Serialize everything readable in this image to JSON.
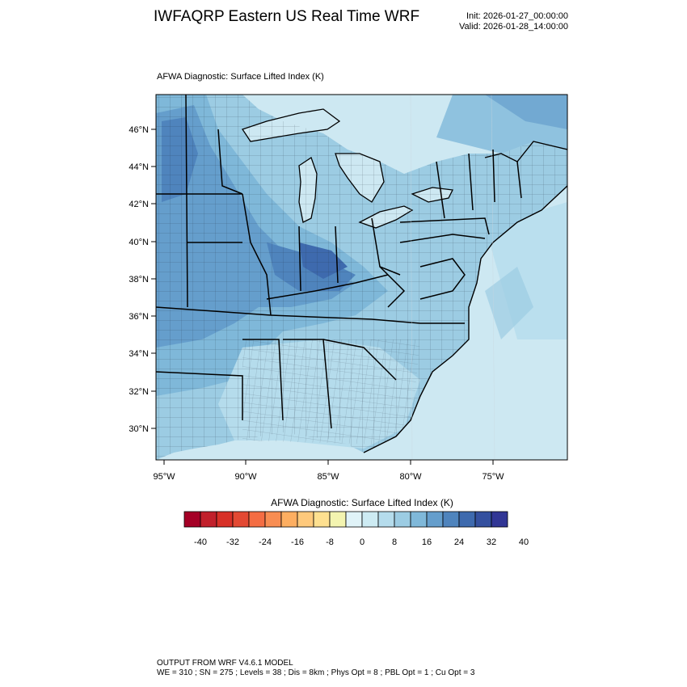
{
  "header": {
    "title": "IWFAQRP Eastern US Real Time WRF",
    "init": "Init: 2026-01-27_00:00:00",
    "valid": "Valid: 2026-01-28_14:00:00"
  },
  "plot": {
    "subtitle": "AFWA Diagnostic: Surface Lifted Index   (K)",
    "lat_labels": [
      "46°N",
      "44°N",
      "42°N",
      "40°N",
      "38°N",
      "36°N",
      "34°N",
      "32°N",
      "30°N"
    ],
    "lon_labels": [
      "95°W",
      "90°W",
      "85°W",
      "80°W",
      "75°W"
    ]
  },
  "colorbar": {
    "title": "AFWA Diagnostic: Surface Lifted Index  (K)",
    "ticks": [
      "-40",
      "-32",
      "-24",
      "-16",
      "-8",
      "0",
      "8",
      "16",
      "24",
      "32",
      "40"
    ],
    "colors": [
      "#a50026",
      "#c1202b",
      "#d73027",
      "#e34933",
      "#f46d43",
      "#f88d52",
      "#fdae61",
      "#fec97c",
      "#fee090",
      "#f3f4b0",
      "#e0f3f8",
      "#cdebf3",
      "#b5dcec",
      "#9ccce3",
      "#7fb8d9",
      "#659ecc",
      "#4f84bd",
      "#3e6aae",
      "#34509f",
      "#313695"
    ]
  },
  "footer": {
    "line1": "OUTPUT FROM WRF V4.6.1 MODEL",
    "line2": "WE = 310 ; SN = 275 ; Levels = 38 ; Dis = 8km ; Phys Opt = 8 ; PBL Opt = 1 ; Cu Opt = 3"
  }
}
